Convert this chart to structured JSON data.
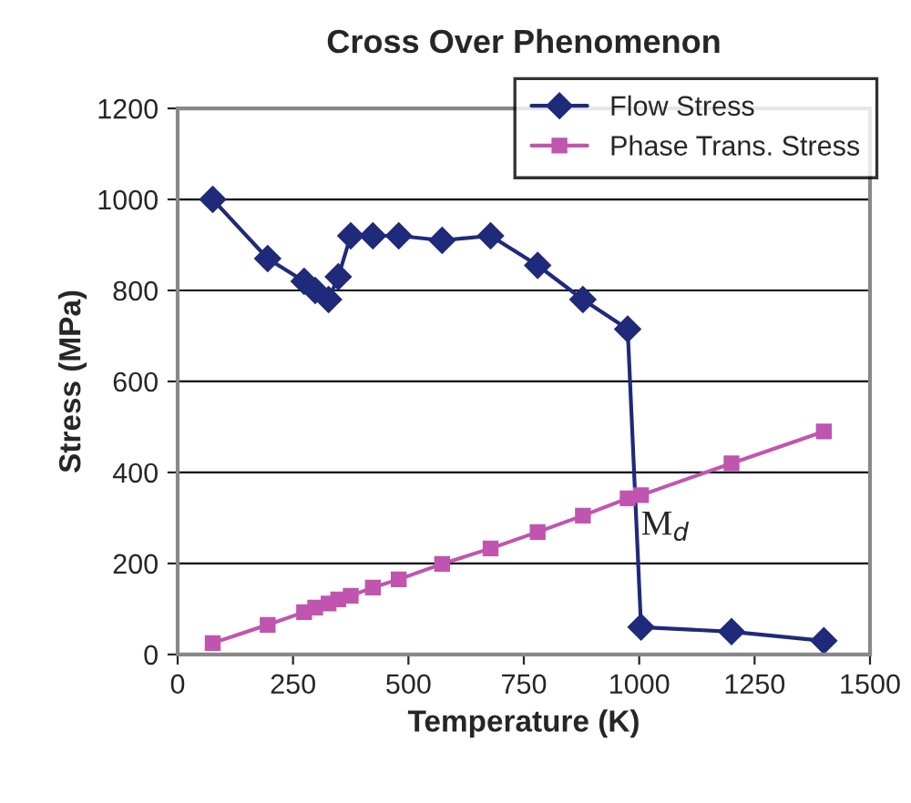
{
  "chart_data": {
    "type": "line",
    "title": "Cross Over Phenomenon",
    "xlabel": "Temperature (K)",
    "ylabel": "Stress (MPa)",
    "xlim": [
      0,
      1500
    ],
    "xticks": [
      0,
      250,
      500,
      750,
      1000,
      1250,
      1500
    ],
    "ylim": [
      0,
      1200
    ],
    "yticks": [
      0,
      200,
      400,
      600,
      800,
      1000,
      1200
    ],
    "grid": "y",
    "legend": "top right",
    "line_style": "solid",
    "series": [
      {
        "name": "Flow Stress",
        "color": "#1f2a7a",
        "marker": "diamond",
        "x": [
          76,
          195,
          274,
          298,
          327,
          348,
          375,
          423,
          479,
          573,
          678,
          780,
          878,
          975,
          1004,
          1200,
          1400
        ],
        "values": [
          1000,
          870,
          820,
          800,
          780,
          830,
          920,
          920,
          920,
          910,
          920,
          855,
          780,
          715,
          60,
          50,
          30
        ]
      },
      {
        "name": "Phase Trans. Stress",
        "color": "#c055b0",
        "marker": "square",
        "x": [
          76,
          195,
          274,
          298,
          327,
          348,
          375,
          423,
          479,
          573,
          678,
          780,
          878,
          975,
          1004,
          1200,
          1400
        ],
        "values": [
          25,
          65,
          93,
          103,
          112,
          121,
          129,
          147,
          165,
          199,
          233,
          269,
          305,
          343,
          350,
          420,
          490
        ]
      }
    ],
    "annotations": [
      {
        "text": "M$_{d}$",
        "x": 1004,
        "y": 350
      }
    ]
  }
}
